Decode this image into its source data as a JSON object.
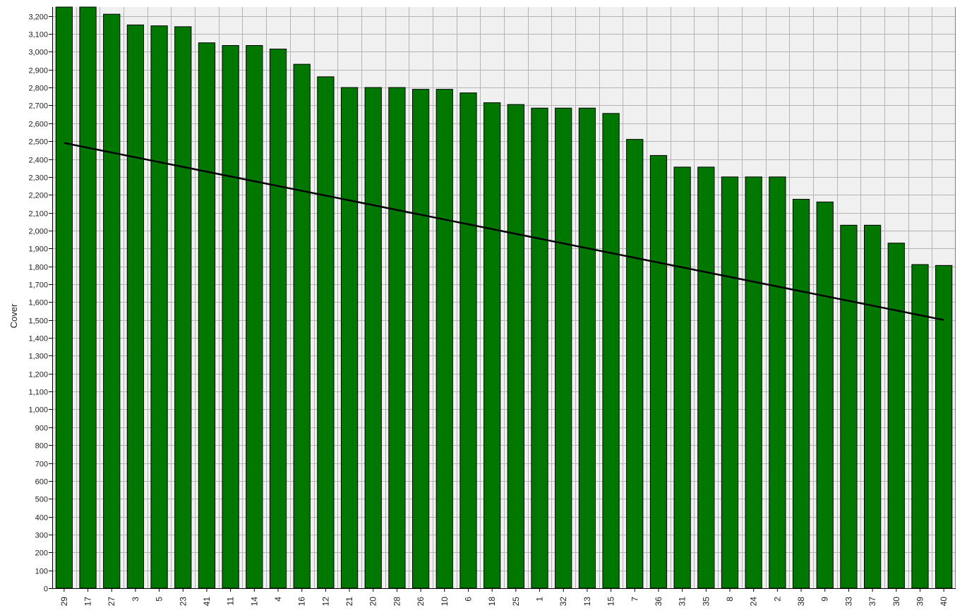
{
  "chart_data": {
    "type": "bar",
    "title": "",
    "xlabel": "",
    "ylabel": "Cover",
    "ylim": [
      0,
      3250
    ],
    "y_tick_step": 100,
    "grid": true,
    "legend": "none",
    "categories": [
      "29",
      "17",
      "27",
      "3",
      "5",
      "23",
      "41",
      "11",
      "14",
      "4",
      "16",
      "12",
      "21",
      "20",
      "28",
      "26",
      "10",
      "6",
      "18",
      "25",
      "1",
      "32",
      "13",
      "15",
      "7",
      "36",
      "31",
      "35",
      "8",
      "24",
      "2",
      "38",
      "9",
      "33",
      "37",
      "30",
      "39",
      "40"
    ],
    "values": [
      3300,
      3275,
      3210,
      3150,
      3145,
      3140,
      3050,
      3035,
      3035,
      3015,
      2930,
      2860,
      2800,
      2800,
      2800,
      2790,
      2790,
      2770,
      2715,
      2705,
      2685,
      2685,
      2685,
      2655,
      2510,
      2420,
      2355,
      2355,
      2300,
      2300,
      2300,
      2175,
      2160,
      2030,
      2030,
      1930,
      1810,
      1805
    ],
    "trendline": {
      "start": 2490,
      "end": 1500
    },
    "colors": {
      "bar_fill": "#007800",
      "bar_stroke": "#000000",
      "plot_background": "#f0f0f0",
      "grid": "#b4b4b4",
      "trendline": "#000000"
    }
  }
}
